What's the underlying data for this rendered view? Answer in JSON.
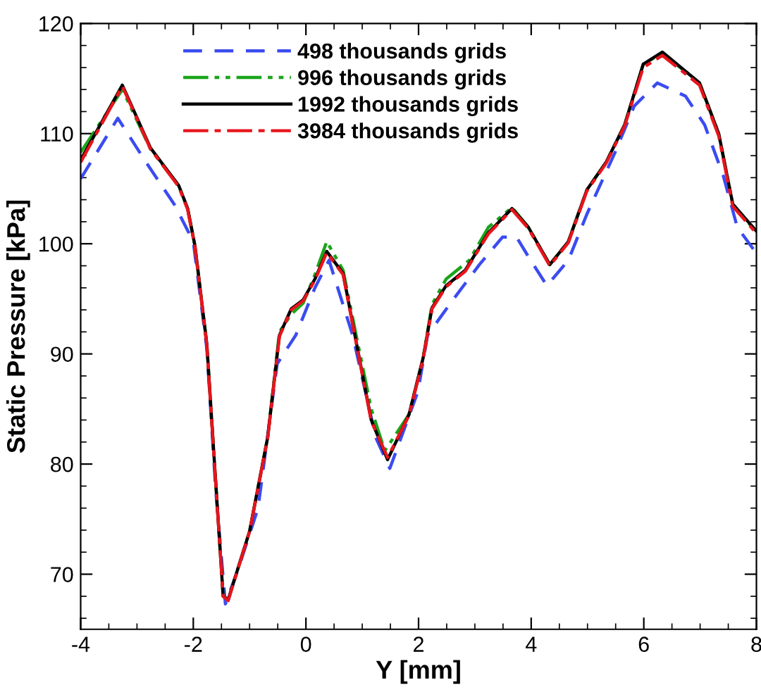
{
  "chart_data": {
    "type": "line",
    "xlabel": "Y [mm]",
    "ylabel": "Static Pressure [kPa]",
    "xlim": [
      -4,
      8
    ],
    "ylim": [
      65,
      120
    ],
    "xticks": [
      -4,
      -2,
      0,
      2,
      4,
      6,
      8
    ],
    "yticks": [
      70,
      80,
      90,
      100,
      110,
      120
    ],
    "grid": false,
    "legend": "top",
    "marker": "none",
    "series": [
      {
        "name": "498 thousands grids",
        "color": "#3b4cf0",
        "line_style": "dashed",
        "x": [
          -4,
          -3.34,
          -2.84,
          -2.34,
          -2.0,
          -1.76,
          -1.6,
          -1.43,
          -1.2,
          -0.85,
          -0.51,
          -0.18,
          0.16,
          0.41,
          0.83,
          1.24,
          1.49,
          1.99,
          2.16,
          2.58,
          3.08,
          3.49,
          3.74,
          3.99,
          4.28,
          4.66,
          4.99,
          5.49,
          5.83,
          6.24,
          6.74,
          7.08,
          7.41,
          7.66,
          7.99
        ],
        "values": [
          105.9,
          111.4,
          107.4,
          103.6,
          100.2,
          90.5,
          77.5,
          67.3,
          70.5,
          76.0,
          89.1,
          91.7,
          96.0,
          98.5,
          91.7,
          82.4,
          79.6,
          86.6,
          91.7,
          94.7,
          98.1,
          100.6,
          100.6,
          98.5,
          96.2,
          98.5,
          102.7,
          108.3,
          112.5,
          114.6,
          113.4,
          110.8,
          106.2,
          101.5,
          99.2
        ]
      },
      {
        "name": "996 thousands grids",
        "color": "#1aa51a",
        "line_style": "dashdotdot",
        "x": [
          -4,
          -3.26,
          -2.76,
          -2.26,
          -2.1,
          -1.97,
          -1.76,
          -1.6,
          -1.47,
          -1.38,
          -1.0,
          -0.68,
          -0.47,
          -0.26,
          -0.05,
          0.16,
          0.37,
          0.66,
          0.9,
          1.16,
          1.4,
          1.83,
          2.08,
          2.24,
          2.49,
          2.9,
          3.24,
          3.66,
          3.95,
          4.33,
          4.66,
          4.99,
          5.33,
          5.66,
          5.99,
          6.33,
          6.99,
          7.33,
          7.58,
          7.99
        ],
        "values": [
          108.3,
          114.0,
          108.6,
          105.3,
          103.2,
          99.8,
          90.9,
          78.2,
          68.0,
          67.7,
          73.9,
          82.4,
          92.0,
          93.6,
          94.6,
          97.2,
          100.2,
          97.6,
          91.5,
          85.0,
          81.2,
          84.5,
          89.6,
          94.5,
          96.8,
          98.5,
          101.5,
          103.3,
          101.5,
          98.1,
          100.2,
          104.9,
          107.4,
          110.8,
          116.3,
          117.3,
          114.6,
          110.0,
          103.6,
          101.1
        ]
      },
      {
        "name": "1992 thousands grids",
        "color": "#000000",
        "line_style": "solid",
        "x": [
          -4,
          -3.26,
          -2.76,
          -2.26,
          -2.1,
          -1.97,
          -1.76,
          -1.6,
          -1.47,
          -1.38,
          -1.0,
          -0.68,
          -0.47,
          -0.26,
          -0.05,
          0.16,
          0.37,
          0.66,
          0.9,
          1.16,
          1.45,
          1.83,
          2.08,
          2.24,
          2.49,
          2.83,
          3.24,
          3.66,
          3.95,
          4.33,
          4.66,
          4.99,
          5.33,
          5.66,
          5.99,
          6.33,
          6.99,
          7.33,
          7.58,
          7.99
        ],
        "values": [
          107.6,
          114.4,
          108.7,
          105.3,
          103.2,
          99.8,
          90.9,
          78.2,
          68.0,
          67.7,
          73.9,
          82.4,
          91.7,
          94.1,
          94.9,
          96.8,
          99.3,
          97.3,
          90.9,
          84.0,
          80.4,
          84.5,
          89.6,
          94.2,
          96.2,
          97.6,
          101.0,
          103.2,
          101.5,
          98.1,
          100.2,
          104.9,
          107.4,
          110.8,
          116.3,
          117.4,
          114.6,
          110.0,
          103.6,
          101.2
        ]
      },
      {
        "name": "3984 thousands grids",
        "color": "#e8141c",
        "line_style": "dashdot",
        "x": [
          -4,
          -3.26,
          -2.76,
          -2.26,
          -2.1,
          -1.97,
          -1.76,
          -1.6,
          -1.47,
          -1.38,
          -1.0,
          -0.68,
          -0.47,
          -0.26,
          -0.05,
          0.16,
          0.37,
          0.66,
          0.9,
          1.16,
          1.45,
          1.83,
          2.08,
          2.24,
          2.49,
          2.83,
          3.24,
          3.66,
          3.95,
          4.33,
          4.66,
          4.99,
          5.33,
          5.66,
          5.99,
          6.33,
          6.99,
          7.33,
          7.58,
          7.99
        ],
        "values": [
          107.4,
          114.3,
          108.6,
          105.2,
          103.1,
          99.7,
          90.8,
          78.1,
          68.0,
          67.6,
          73.9,
          82.3,
          91.6,
          94.0,
          94.8,
          96.7,
          99.2,
          97.2,
          90.8,
          83.9,
          80.6,
          84.4,
          89.5,
          94.1,
          96.1,
          97.5,
          100.9,
          103.1,
          101.4,
          98.0,
          100.1,
          104.8,
          107.3,
          110.7,
          116.0,
          117.1,
          114.4,
          109.8,
          103.4,
          101.0
        ]
      }
    ]
  }
}
